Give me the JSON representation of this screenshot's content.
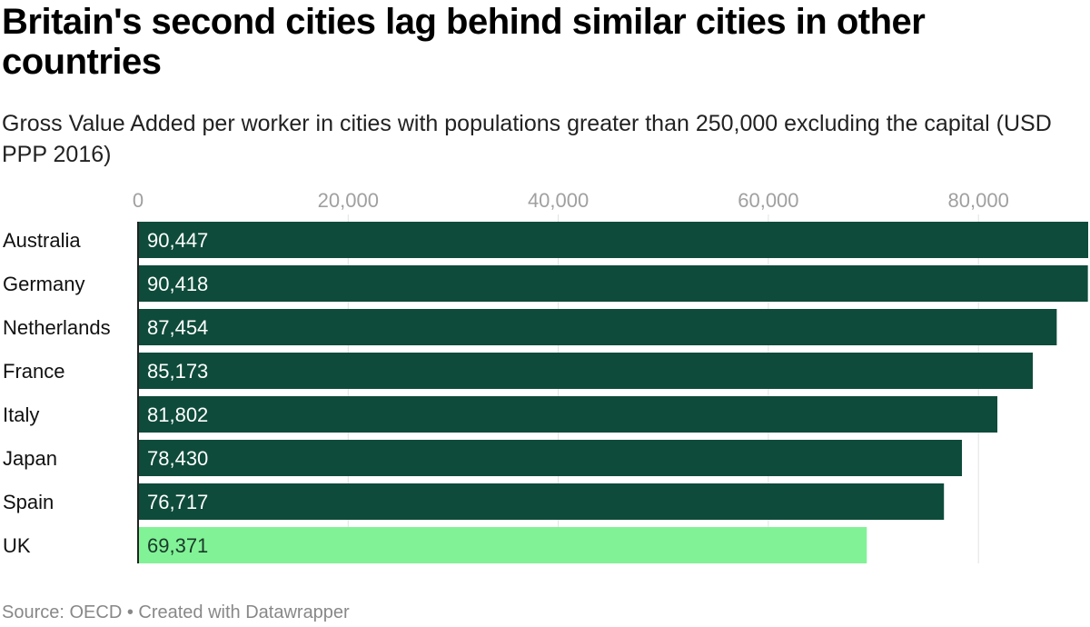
{
  "chart_data": {
    "type": "bar",
    "orientation": "horizontal",
    "title": "Britain's second cities lag behind similar cities in other countries",
    "subtitle": "Gross Value Added per worker in cities with populations greater than 250,000 excluding the capital (USD PPP 2016)",
    "categories": [
      "Australia",
      "Germany",
      "Netherlands",
      "France",
      "Italy",
      "Japan",
      "Spain",
      "UK"
    ],
    "values": [
      90447,
      90418,
      87454,
      85173,
      81802,
      78430,
      76717,
      69371
    ],
    "value_labels": [
      "90,447",
      "90,418",
      "87,454",
      "85,173",
      "81,802",
      "78,430",
      "76,717",
      "69,371"
    ],
    "x_ticks": [
      0,
      20000,
      40000,
      60000,
      80000
    ],
    "x_tick_labels": [
      "0",
      "20,000",
      "40,000",
      "60,000",
      "80,000"
    ],
    "xlim": [
      0,
      90447
    ],
    "grid": true,
    "xlabel": "",
    "ylabel": "",
    "colors": {
      "default": "#0e4b3a",
      "highlight": "#82f297",
      "label_on_dark": "#ffffff",
      "label_on_light": "#1a3a2a"
    },
    "highlight_category": "UK",
    "source": "Source: OECD • Created with Datawrapper"
  }
}
